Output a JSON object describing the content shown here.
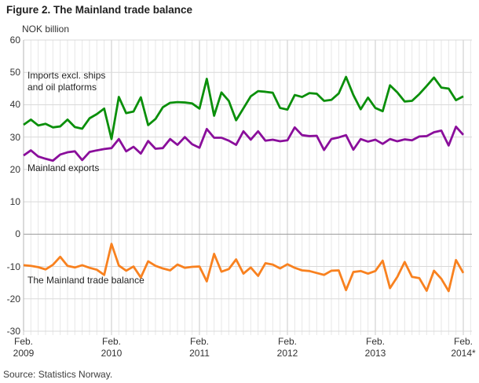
{
  "page": {
    "title": "Figure 2. The Mainland trade balance",
    "source": "Source: Statistics Norway."
  },
  "chart_data": {
    "type": "line",
    "title": "Figure 2. The Mainland trade balance",
    "unit": "NOK billion",
    "ylim": [
      -30,
      60
    ],
    "y_ticks": [
      60,
      50,
      40,
      30,
      20,
      10,
      0,
      -10,
      -20,
      -30
    ],
    "x_months_span": "Feb. 2009 to Feb. 2014 (monthly)",
    "x_tick_labels": [
      {
        "month": "Feb.",
        "year": "2009"
      },
      {
        "month": "Feb.",
        "year": "2010"
      },
      {
        "month": "Feb.",
        "year": "2011"
      },
      {
        "month": "Feb.",
        "year": "2012"
      },
      {
        "month": "Feb.",
        "year": "2013"
      },
      {
        "month": "Feb.",
        "year": "2014*"
      }
    ],
    "grid": true,
    "legend_position": "in-plot annotations",
    "series": [
      {
        "id": "imports",
        "name": "Imports excl. ships and oil platforms",
        "label_lines": [
          "Imports excl. ships",
          "and oil platforms"
        ],
        "color": "#0a8f0a",
        "values": [
          33.8,
          35.4,
          33.6,
          34.1,
          33.0,
          33.3,
          35.4,
          33.1,
          32.6,
          35.8,
          37.1,
          38.8,
          29.4,
          42.4,
          37.4,
          37.9,
          42.3,
          33.7,
          35.6,
          39.2,
          40.6,
          40.8,
          40.7,
          40.4,
          38.8,
          48.0,
          36.6,
          43.8,
          41.2,
          35.2,
          38.9,
          42.6,
          44.2,
          44.0,
          43.7,
          39.0,
          38.5,
          43.0,
          42.4,
          43.6,
          43.4,
          41.2,
          41.5,
          43.5,
          48.6,
          43.0,
          38.6,
          42.2,
          39.0,
          38.0,
          46.0,
          43.8,
          41.0,
          41.2,
          43.3,
          45.8,
          48.4,
          45.3,
          45.0,
          41.4,
          42.6
        ]
      },
      {
        "id": "exports",
        "name": "Mainland exports",
        "label_lines": [
          "Mainland exports"
        ],
        "color": "#8a0e9b",
        "values": [
          24.3,
          25.9,
          24.0,
          23.3,
          22.7,
          24.6,
          25.3,
          25.6,
          22.9,
          25.4,
          25.9,
          26.3,
          26.6,
          29.4,
          25.6,
          27.0,
          24.9,
          28.8,
          26.4,
          26.6,
          29.4,
          27.6,
          30.0,
          27.8,
          26.7,
          32.5,
          29.8,
          29.8,
          28.9,
          27.6,
          31.8,
          29.2,
          31.8,
          28.9,
          29.2,
          28.7,
          29.0,
          33.0,
          30.6,
          30.3,
          30.4,
          26.0,
          29.4,
          29.9,
          30.6,
          26.1,
          29.4,
          28.6,
          29.2,
          27.9,
          29.4,
          28.7,
          29.3,
          29.0,
          30.2,
          30.3,
          31.5,
          32.0,
          27.4,
          33.2,
          30.7
        ]
      },
      {
        "id": "balance",
        "name": "The Mainland trade balance",
        "label_lines": [
          "The Mainland trade balance"
        ],
        "color": "#f8811f",
        "values": [
          -9.6,
          -9.8,
          -10.2,
          -10.9,
          -9.5,
          -7.0,
          -9.8,
          -10.3,
          -9.6,
          -10.4,
          -11.0,
          -12.6,
          -3.0,
          -9.7,
          -11.3,
          -10.0,
          -13.4,
          -8.4,
          -9.8,
          -10.6,
          -11.2,
          -9.4,
          -10.4,
          -10.1,
          -10.0,
          -14.6,
          -6.1,
          -11.6,
          -10.8,
          -7.8,
          -12.2,
          -10.3,
          -12.9,
          -9.0,
          -9.4,
          -10.6,
          -9.3,
          -10.4,
          -11.2,
          -11.4,
          -12.0,
          -12.6,
          -11.3,
          -11.2,
          -17.3,
          -11.7,
          -11.4,
          -12.2,
          -11.4,
          -8.2,
          -16.7,
          -13.2,
          -8.6,
          -13.2,
          -13.6,
          -17.5,
          -11.3,
          -13.8,
          -17.6,
          -8.0,
          -12.0
        ]
      }
    ],
    "colors": {
      "grid_minor": "#e7e7e7",
      "grid_year": "#c8c8c8",
      "grid_horizontal": "#d9d9d9",
      "zero_line": "#9b9b9b"
    }
  }
}
